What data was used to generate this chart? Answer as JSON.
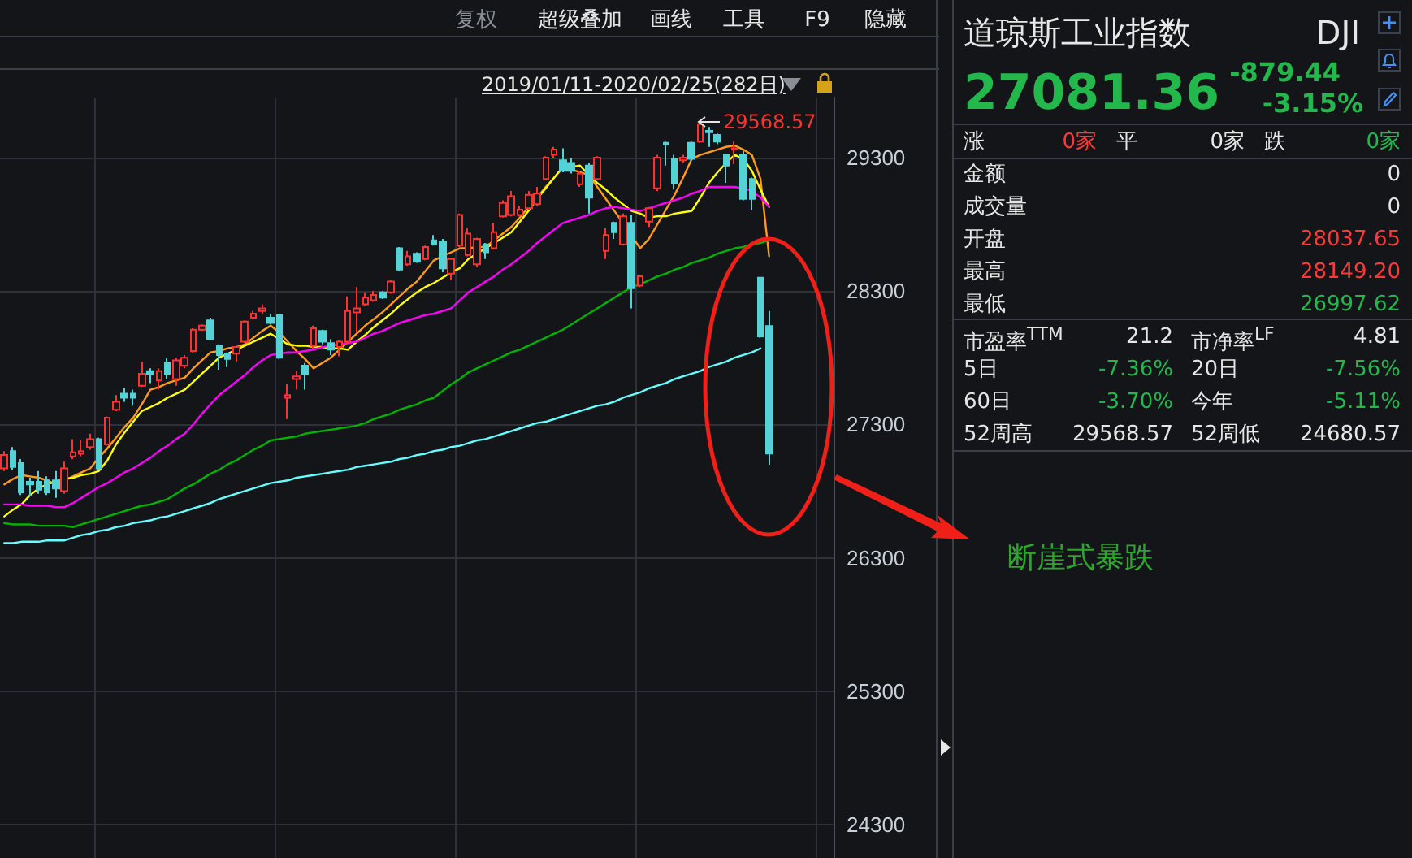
{
  "chart_data": [
    {
      "type": "candlestick",
      "tick_labels": "y",
      "grid": true,
      "line_style": "solid",
      "ylim": [
        24050,
        29750
      ],
      "yticks": [
        24300,
        25300,
        26300,
        27300,
        28300,
        29300
      ],
      "categories": [
        null,
        null,
        null,
        null,
        null,
        null,
        null,
        null,
        null,
        null,
        null,
        null,
        null,
        null,
        null,
        null,
        null,
        null,
        null,
        null,
        null,
        null,
        null,
        null,
        null,
        null,
        null,
        null,
        null,
        null,
        null,
        null,
        null,
        null,
        null,
        null,
        null,
        null,
        null,
        null,
        null,
        null,
        null,
        null,
        null,
        null,
        null,
        null,
        null,
        null,
        null,
        null,
        null,
        null,
        null,
        null,
        null,
        null,
        null,
        null,
        null,
        null,
        null,
        null,
        null,
        null,
        null,
        null,
        null,
        null,
        null,
        null,
        null,
        null,
        null,
        null,
        null,
        null,
        null,
        null,
        null,
        null,
        null,
        null,
        null,
        null,
        null,
        null,
        null,
        null,
        null,
        null,
        null,
        null,
        null,
        null,
        null
      ],
      "annotations": [
        "2019/01/11-2020/02/25(282日)",
        "29568.57",
        "断崖式暴跌",
        "复权",
        "超级叠加",
        "画线",
        "工具",
        "F9",
        "隐藏"
      ],
      "series": [
        {
          "colors": [
            "#ff3232",
            "#54d2d6",
            "#54d2d6",
            "#54d2d6",
            "#54d2d6",
            "#54d2d6",
            "#54d2d6",
            "#ff3232",
            "#ff3232",
            "#ff3232",
            "#ff3232",
            "#54d2d6",
            "#ff3232",
            "#ff3232",
            "#54d2d6",
            "#54d2d6",
            "#ff3232",
            "#54d2d6",
            "#ff3232",
            "#54d2d6",
            "#ff3232",
            "#ff3232",
            "#ff3232",
            "#ff3232",
            "#54d2d6",
            "#54d2d6",
            "#54d2d6",
            "#ff3232",
            "#ff3232",
            "#ff3232",
            "#ff3232",
            "#54d2d6",
            "#54d2d6",
            "#ff3232",
            "#ff3232",
            "#54d2d6",
            "#ff3232",
            "#54d2d6",
            "#54d2d6",
            "#ff3232",
            "#ff3232",
            "#ff3232",
            "#ff3232",
            "#ff3232",
            "#54d2d6",
            "#ff3232",
            "#54d2d6",
            "#ff3232",
            "#54d2d6",
            "#ff3232",
            "#54d2d6",
            "#54d2d6",
            "#ff3232",
            "#ff3232",
            "#ff3232",
            "#ff3232",
            "#54d2d6",
            "#ff3232",
            "#ff3232",
            "#ff3232",
            "#ff3232",
            "#ff3232",
            "#ff3232",
            "#ff3232",
            "#ff3232",
            "#54d2d6",
            "#54d2d6",
            "#ff3232",
            "#54d2d6",
            "#ff3232",
            "#ff3232",
            "#54d2d6",
            "#ff3232",
            "#54d2d6",
            "#ff3232",
            "#ff3232",
            "#ff3232",
            "#54d2d6",
            "#54d2d6",
            "#ff3232",
            "#54d2d6",
            "#ff3232",
            "#54d2d6",
            "#54d2d6",
            "#54d2d6",
            "#ff3232",
            "#54d2d6",
            "#54d2d6",
            "#54d2d6",
            "#54d2d6",
            null,
            null,
            null,
            null,
            null,
            null,
            null
          ],
          "ohlc": [
            [
              26970,
              27100,
              26950,
              27070
            ],
            [
              27100,
              27130,
              26960,
              26980
            ],
            [
              27010,
              27040,
              26770,
              26790
            ],
            [
              26870,
              26900,
              26760,
              26850
            ],
            [
              26870,
              26950,
              26780,
              26810
            ],
            [
              26880,
              26910,
              26770,
              26790
            ],
            [
              26880,
              26950,
              26750,
              26820
            ],
            [
              26800,
              27020,
              26780,
              26970
            ],
            [
              27060,
              27190,
              27040,
              27090
            ],
            [
              27080,
              27180,
              27060,
              27100
            ],
            [
              27130,
              27230,
              27110,
              27190
            ],
            [
              27190,
              27200,
              26960,
              26970
            ],
            [
              27150,
              27360,
              27140,
              27350
            ],
            [
              27410,
              27520,
              27400,
              27470
            ],
            [
              27530,
              27570,
              27470,
              27500
            ],
            [
              27530,
              27560,
              27440,
              27500
            ],
            [
              27590,
              27770,
              27580,
              27680
            ],
            [
              27700,
              27720,
              27610,
              27680
            ],
            [
              27630,
              27720,
              27560,
              27700
            ],
            [
              27760,
              27800,
              27640,
              27680
            ],
            [
              27640,
              27800,
              27590,
              27780
            ],
            [
              27740,
              27820,
              27720,
              27800
            ],
            [
              27850,
              28020,
              27840,
              28010
            ],
            [
              28010,
              28050,
              28000,
              28040
            ],
            [
              28080,
              28100,
              27930,
              27940
            ],
            [
              27890,
              27900,
              27710,
              27820
            ],
            [
              27830,
              27840,
              27730,
              27790
            ],
            [
              27830,
              27890,
              27770,
              27880
            ],
            [
              27920,
              28080,
              27910,
              28070
            ],
            [
              28100,
              28150,
              28090,
              28130
            ],
            [
              28150,
              28200,
              28130,
              28170
            ],
            [
              28100,
              28130,
              28050,
              28060
            ],
            [
              28120,
              28130,
              27790,
              27800
            ],
            [
              27500,
              27600,
              27340,
              27520
            ],
            [
              27640,
              27700,
              27560,
              27660
            ],
            [
              27740,
              27760,
              27560,
              27680
            ],
            [
              27890,
              28040,
              27860,
              28020
            ],
            [
              28000,
              28010,
              27900,
              27920
            ],
            [
              27910,
              27940,
              27820,
              27860
            ],
            [
              27880,
              27930,
              27810,
              27920
            ],
            [
              27920,
              28260,
              27900,
              28150
            ],
            [
              28140,
              28330,
              27990,
              28170
            ],
            [
              28200,
              28290,
              28190,
              28250
            ],
            [
              28230,
              28300,
              28220,
              28270
            ],
            [
              28290,
              28300,
              28240,
              28250
            ],
            [
              28290,
              28380,
              28280,
              28370
            ],
            [
              28620,
              28630,
              28450,
              28460
            ],
            [
              28500,
              28600,
              28490,
              28560
            ],
            [
              28580,
              28590,
              28510,
              28520
            ],
            [
              28540,
              28640,
              28530,
              28630
            ],
            [
              28680,
              28720,
              28640,
              28650
            ],
            [
              28670,
              28690,
              28440,
              28470
            ],
            [
              28430,
              28550,
              28380,
              28540
            ],
            [
              28640,
              28880,
              28630,
              28870
            ],
            [
              28570,
              28770,
              28560,
              28730
            ],
            [
              28500,
              28700,
              28480,
              28690
            ],
            [
              28650,
              28660,
              28540,
              28590
            ],
            [
              28620,
              28810,
              28610,
              28740
            ],
            [
              28860,
              28980,
              28850,
              28960
            ],
            [
              28870,
              29050,
              28860,
              29010
            ],
            [
              28870,
              28940,
              28860,
              28910
            ],
            [
              28920,
              29050,
              28910,
              29020
            ],
            [
              28950,
              29080,
              28940,
              29030
            ],
            [
              29140,
              29310,
              29130,
              29300
            ],
            [
              29320,
              29380,
              29300,
              29360
            ],
            [
              29280,
              29370,
              29190,
              29200
            ],
            [
              29260,
              29300,
              29180,
              29200
            ],
            [
              29100,
              29200,
              29080,
              29180
            ],
            [
              29240,
              29260,
              28880,
              29000
            ],
            [
              29140,
              29310,
              29130,
              29300
            ],
            [
              28600,
              28770,
              28540,
              28720
            ],
            [
              28810,
              28820,
              28690,
              28740
            ],
            [
              28650,
              28880,
              28640,
              28860
            ],
            [
              28810,
              28870,
              28170,
              28320
            ],
            [
              28340,
              28420,
              28330,
              28410
            ],
            [
              28820,
              28930,
              28780,
              28920
            ],
            [
              29070,
              29320,
              29050,
              29300
            ],
            [
              29410,
              29420,
              29240,
              29400
            ],
            [
              29290,
              29320,
              29060,
              29110
            ],
            [
              29280,
              29320,
              29260,
              29300
            ],
            [
              29410,
              29420,
              29280,
              29290
            ],
            [
              29420,
              29568.57,
              29410,
              29550
            ],
            [
              29500,
              29530,
              29380,
              29490
            ],
            [
              29470,
              29480,
              29400,
              29420
            ],
            [
              29320,
              29330,
              29110,
              29240
            ],
            [
              29360,
              29420,
              29250,
              29370
            ],
            [
              29320,
              29350,
              28980,
              28990
            ],
            [
              29140,
              29150,
              28910,
              28990
            ],
            [
              28400,
              28400,
              27950,
              27960
            ],
            [
              28037.65,
              28149.2,
              26997.62,
              27081.36
            ],
            null,
            null,
            null,
            null,
            null,
            null,
            null
          ]
        },
        {
          "type": "line",
          "color": "#ff9a1a",
          "values": [
            26850,
            26890,
            26920,
            26910,
            26900,
            26880,
            26850,
            26880,
            26910,
            26940,
            26970,
            27050,
            27120,
            27200,
            27280,
            27350,
            27450,
            27560,
            27580,
            27610,
            27630,
            27650,
            27720,
            27780,
            27840,
            27850,
            27870,
            27880,
            27900,
            27950,
            28000,
            28040,
            27990,
            27920,
            27850,
            27790,
            27720,
            27760,
            27800,
            27860,
            27920,
            27980,
            28040,
            28090,
            28140,
            28200,
            28260,
            28320,
            28370,
            28450,
            28530,
            28560,
            28590,
            28620,
            28620,
            28630,
            28630,
            28680,
            28730,
            28780,
            28850,
            28930,
            29000,
            29080,
            29150,
            29230,
            29210,
            29190,
            29170,
            29080,
            28990,
            28900,
            28810,
            28710,
            28620,
            28690,
            28800,
            28910,
            29020,
            29150,
            29290,
            29320,
            29340,
            29360,
            29380,
            29390,
            29360,
            29320,
            29140,
            28560,
            null,
            null,
            null,
            null,
            null,
            null,
            null
          ]
        },
        {
          "type": "line",
          "color": "#ffff00",
          "values": [
            26610,
            26660,
            26700,
            26770,
            26820,
            26850,
            26870,
            26890,
            26900,
            26920,
            26930,
            26950,
            27030,
            27150,
            27240,
            27320,
            27400,
            27430,
            27460,
            27500,
            27530,
            27560,
            27620,
            27680,
            27740,
            27800,
            27830,
            27860,
            27890,
            27920,
            27950,
            27980,
            27940,
            27900,
            27890,
            27890,
            27880,
            27880,
            27870,
            27870,
            27860,
            27920,
            27970,
            28030,
            28080,
            28130,
            28190,
            28240,
            28290,
            28330,
            28360,
            28400,
            28440,
            28470,
            28540,
            28580,
            28620,
            28660,
            28700,
            28740,
            28820,
            28900,
            28990,
            29070,
            29150,
            29230,
            29230,
            29240,
            29170,
            29110,
            29060,
            29000,
            28950,
            28900,
            28880,
            28850,
            28860,
            28860,
            28880,
            28890,
            28900,
            29000,
            29110,
            29190,
            29260,
            29320,
            29290,
            29200,
            29060,
            28930,
            null,
            null,
            null,
            null,
            null,
            null,
            null
          ]
        },
        {
          "type": "line",
          "color": "#ff00ff",
          "values": [
            26700,
            26700,
            26700,
            26690,
            26690,
            26690,
            26680,
            26680,
            26710,
            26750,
            26790,
            26830,
            26860,
            26900,
            26940,
            26970,
            27010,
            27050,
            27100,
            27140,
            27190,
            27230,
            27300,
            27380,
            27450,
            27520,
            27570,
            27620,
            27670,
            27730,
            27780,
            27820,
            27830,
            27840,
            27840,
            27850,
            27860,
            27880,
            27890,
            27900,
            27910,
            27920,
            27950,
            27980,
            28000,
            28030,
            28060,
            28080,
            28100,
            28120,
            28130,
            28150,
            28170,
            28230,
            28290,
            28330,
            28370,
            28410,
            28460,
            28500,
            28550,
            28600,
            28660,
            28710,
            28760,
            28810,
            28830,
            28850,
            28870,
            28900,
            28920,
            28930,
            28920,
            28910,
            28900,
            28920,
            28940,
            28960,
            28980,
            29000,
            29030,
            29050,
            29080,
            29080,
            29080,
            29080,
            29070,
            29050,
            29000,
            28930,
            null,
            null,
            null,
            null,
            null,
            null,
            null
          ]
        },
        {
          "type": "line",
          "color": "#00b400",
          "values": [
            26560,
            26550,
            26550,
            26550,
            26540,
            26540,
            26540,
            26540,
            26530,
            26550,
            26570,
            26590,
            26610,
            26630,
            26650,
            26670,
            26690,
            26700,
            26720,
            26740,
            26780,
            26820,
            26850,
            26890,
            26930,
            26960,
            27000,
            27030,
            27070,
            27110,
            27140,
            27180,
            27190,
            27200,
            27210,
            27230,
            27240,
            27250,
            27260,
            27270,
            27280,
            27290,
            27310,
            27340,
            27360,
            27380,
            27410,
            27430,
            27450,
            27480,
            27500,
            27550,
            27600,
            27640,
            27690,
            27720,
            27750,
            27780,
            27810,
            27840,
            27860,
            27890,
            27920,
            27950,
            27980,
            28010,
            28050,
            28090,
            28130,
            28170,
            28210,
            28250,
            28290,
            28330,
            28350,
            28380,
            28410,
            28430,
            28460,
            28480,
            28510,
            28530,
            28550,
            28580,
            28600,
            28620,
            28630,
            28650,
            28660,
            28680,
            null,
            null,
            null,
            null,
            null,
            null,
            null
          ]
        },
        {
          "type": "line",
          "color": "#66ffff",
          "values": [
            26410,
            26410,
            26420,
            26420,
            26420,
            26430,
            26430,
            26430,
            26450,
            26470,
            26480,
            26500,
            26510,
            26530,
            26540,
            26560,
            26570,
            26580,
            26600,
            26610,
            26630,
            26650,
            26670,
            26690,
            26710,
            26740,
            26760,
            26780,
            26800,
            26820,
            26840,
            26860,
            26870,
            26880,
            26900,
            26910,
            26920,
            26930,
            26940,
            26950,
            26960,
            26980,
            26990,
            27000,
            27010,
            27020,
            27040,
            27050,
            27070,
            27080,
            27100,
            27110,
            27130,
            27140,
            27160,
            27180,
            27190,
            27210,
            27230,
            27250,
            27270,
            27290,
            27310,
            27320,
            27340,
            27360,
            27380,
            27400,
            27420,
            27440,
            27450,
            27470,
            27500,
            27520,
            27540,
            27570,
            27590,
            27610,
            27640,
            27660,
            27680,
            27700,
            27730,
            27750,
            27770,
            27800,
            27820,
            27840,
            27870,
            null,
            null,
            null,
            null,
            null,
            null,
            null,
            null
          ]
        }
      ]
    },
    {
      "type": "other",
      "title": "道琼斯工业指数",
      "annotations": [
        "DJI",
        "27081.36",
        "-879.44",
        "-3.15%",
        "涨",
        "0家",
        "平",
        "0家",
        "跌",
        "0家",
        "金额",
        "0",
        "成交量",
        "0",
        "开盘",
        "28037.65",
        "最高",
        "28149.20",
        "最低",
        "26997.62",
        "市盈率$^{TTM}$",
        "21.2",
        "市净率$^{LF}$",
        "4.81",
        "5日",
        "-7.36%",
        "20日",
        "-7.56%",
        "60日",
        "-3.70%",
        "今年",
        "-5.11%",
        "52周高",
        "29568.57",
        "52周低",
        "24680.57"
      ]
    }
  ]
}
